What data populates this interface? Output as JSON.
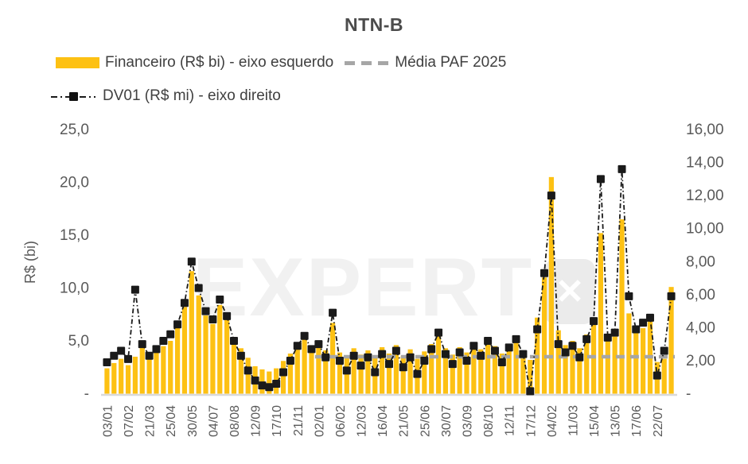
{
  "title": "NTN-B",
  "legend": {
    "financeiro_label": "Financeiro (R$ bi) - eixo esquerdo",
    "media_label": "Média PAF 2025",
    "dv01_label": "DV01 (R$ mi) - eixo direito"
  },
  "watermark": {
    "text": "EXPERT",
    "logo_glyph": "✕"
  },
  "colors": {
    "bar": "#FDC113",
    "dv01_line": "#1a1a1a",
    "media_line": "#a6a6a6",
    "axis_text": "#595959",
    "title_text": "#4c4c4c",
    "baseline": "#d9d9d9",
    "watermark": "#f1f1f1"
  },
  "chart_data": {
    "type": "bar",
    "title": "NTN-B",
    "grid": false,
    "legend_position": "top-left",
    "left_axis": {
      "label": "R$ (bi)",
      "tick_labels": [
        "25,0",
        "20,0",
        "15,0",
        "10,0",
        "5,0",
        "-"
      ],
      "tick_values": [
        25,
        20,
        15,
        10,
        5,
        0
      ],
      "range": [
        0,
        25
      ]
    },
    "right_axis": {
      "label": "",
      "tick_labels": [
        "16,00",
        "14,00",
        "12,00",
        "10,00",
        "8,00",
        "6,00",
        "4,00",
        "2,00",
        "-"
      ],
      "tick_values": [
        16,
        14,
        12,
        10,
        8,
        6,
        4,
        2,
        0
      ],
      "range": [
        0,
        16
      ]
    },
    "x_tick_labels": [
      "03/01",
      "07/02",
      "21/03",
      "25/04",
      "30/05",
      "04/07",
      "08/08",
      "12/09",
      "17/10",
      "21/11",
      "02/01",
      "06/02",
      "12/03",
      "16/04",
      "21/05",
      "25/06",
      "30/07",
      "03/09",
      "08/10",
      "12/11",
      "17/12",
      "04/02",
      "11/03",
      "15/04",
      "13/05",
      "17/06",
      "22/07"
    ],
    "x_label_every_n_bars": 3,
    "n_bars": 81,
    "series": [
      {
        "name": "Financeiro (R$ bi)",
        "type": "bar",
        "axis": "left",
        "values": [
          2.4,
          2.9,
          3.3,
          2.7,
          3.5,
          4.7,
          3.6,
          4.1,
          4.5,
          5.0,
          6.3,
          8.2,
          11.6,
          9.3,
          7.4,
          6.6,
          8.4,
          7.0,
          5.2,
          4.3,
          3.4,
          2.6,
          2.3,
          2.1,
          2.4,
          3.1,
          3.8,
          4.6,
          5.3,
          4.4,
          4.9,
          4.1,
          6.7,
          3.9,
          3.4,
          4.3,
          3.7,
          4.1,
          3.5,
          4.4,
          3.8,
          4.6,
          3.6,
          4.2,
          3.3,
          4.0,
          4.7,
          5.6,
          4.3,
          3.7,
          4.4,
          3.9,
          4.8,
          4.2,
          5.1,
          4.5,
          3.8,
          4.7,
          5.3,
          4.1,
          3.2,
          7.2,
          11.0,
          20.5,
          6.0,
          4.6,
          5.0,
          4.3,
          5.6,
          7.2,
          15.2,
          5.0,
          5.4,
          16.5,
          7.6,
          5.8,
          6.2,
          7.0,
          3.0,
          3.3,
          10.1
        ]
      },
      {
        "name": "DV01 (R$ mi)",
        "type": "line-markers",
        "axis": "right",
        "values": [
          1.9,
          2.3,
          2.6,
          2.1,
          6.3,
          3.0,
          2.3,
          2.7,
          3.2,
          3.6,
          4.2,
          5.5,
          8.0,
          6.4,
          5.0,
          4.5,
          5.7,
          4.7,
          3.2,
          2.3,
          1.4,
          0.8,
          0.5,
          0.4,
          0.6,
          1.3,
          2.0,
          2.9,
          3.5,
          2.7,
          3.0,
          2.2,
          4.9,
          2.0,
          1.4,
          2.3,
          1.7,
          2.2,
          1.3,
          2.4,
          1.8,
          2.6,
          1.6,
          2.2,
          1.2,
          2.0,
          2.7,
          3.7,
          2.4,
          1.8,
          2.5,
          2.0,
          2.9,
          2.3,
          3.2,
          2.6,
          1.9,
          2.8,
          3.3,
          2.4,
          0.15,
          3.9,
          7.3,
          12.0,
          3.0,
          2.5,
          2.9,
          2.2,
          3.3,
          4.4,
          13.0,
          3.4,
          3.7,
          13.6,
          5.9,
          3.9,
          4.3,
          4.6,
          1.1,
          2.6,
          5.9
        ]
      },
      {
        "name": "Média PAF 2025",
        "type": "hline",
        "axis": "left",
        "value": 3.5,
        "start_bar_index": 30
      }
    ]
  }
}
